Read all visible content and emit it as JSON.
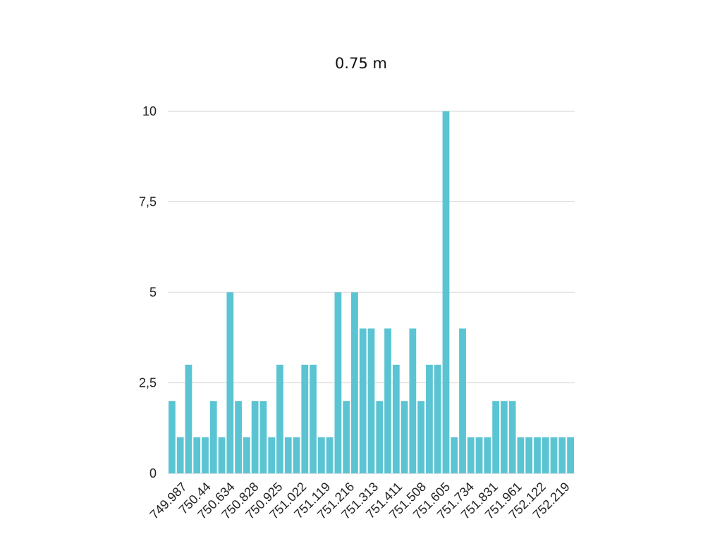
{
  "chart_data": {
    "type": "bar",
    "title": "0.75 m",
    "xlabel": "",
    "ylabel": "",
    "ylim": [
      0,
      10
    ],
    "yticks": [
      "0",
      "2,5",
      "5",
      "7,5",
      "10"
    ],
    "ytick_values": [
      0,
      2.5,
      5,
      7.5,
      10
    ],
    "color": "#5bc4d3",
    "grid": true,
    "x_tick_labels": [
      "749.987",
      "750.44",
      "750.634",
      "750.828",
      "750.925",
      "751.022",
      "751.119",
      "751.216",
      "751.313",
      "751.411",
      "751.508",
      "751.605",
      "751.734",
      "751.831",
      "751.961",
      "752.122",
      "752.219"
    ],
    "values": [
      2,
      1,
      3,
      1,
      1,
      2,
      1,
      5,
      2,
      1,
      2,
      2,
      1,
      3,
      1,
      1,
      3,
      3,
      1,
      1,
      5,
      2,
      5,
      4,
      4,
      2,
      4,
      3,
      2,
      4,
      2,
      3,
      3,
      10,
      1,
      4,
      1,
      1,
      1,
      2,
      2,
      2,
      1,
      1,
      1,
      1,
      1,
      1,
      1
    ]
  }
}
